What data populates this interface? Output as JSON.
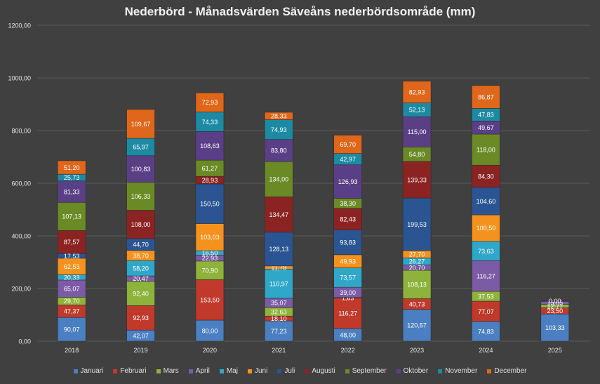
{
  "chart_data": {
    "type": "bar",
    "stacked": true,
    "title": "Nederbörd - Månadsvärden Säveåns nederbördsområde (mm)",
    "categories": [
      "2018",
      "2019",
      "2020",
      "2021",
      "2022",
      "2023",
      "2024",
      "2025"
    ],
    "ylim": [
      0,
      1200
    ],
    "yticks": [
      "0,00",
      "200,00",
      "400,00",
      "600,00",
      "800,00",
      "1000,00",
      "1200,00"
    ],
    "grid": true,
    "legend_position": "bottom",
    "series": [
      {
        "name": "Januari",
        "color": "#4a7fc1",
        "values": [
          90.07,
          42.07,
          80.0,
          77.23,
          48.0,
          120.57,
          74.83,
          103.33
        ],
        "labels": [
          "90,07",
          "42,07",
          "80,00",
          "77,23",
          "48,00",
          "120,57",
          "74,83",
          "103,33"
        ]
      },
      {
        "name": "Februari",
        "color": "#c0392b",
        "values": [
          47.37,
          92.93,
          153.5,
          18.1,
          116.27,
          40.73,
          77.07,
          23.5
        ],
        "labels": [
          "47,37",
          "92,93",
          "153,50",
          "18,10",
          "116,27",
          "40,73",
          "77,07",
          "23,50"
        ]
      },
      {
        "name": "Mars",
        "color": "#8db33a",
        "values": [
          29.7,
          92.4,
          70.9,
          32.63,
          1.63,
          108.13,
          37.53,
          12.77
        ],
        "labels": [
          "29,70",
          "92,40",
          "70,90",
          "32,63",
          "1,63",
          "108,13",
          "37,53",
          "12,77"
        ]
      },
      {
        "name": "April",
        "color": "#7b5aa6",
        "values": [
          65.07,
          20.47,
          22.93,
          35.07,
          39.0,
          20.7,
          116.27,
          13.03
        ],
        "labels": [
          "65,07",
          "20,47",
          "22,93",
          "35,07",
          "39,00",
          "20,70",
          "116,27",
          "13,03"
        ]
      },
      {
        "name": "Maj",
        "color": "#2fa7c9",
        "values": [
          20.33,
          58.2,
          16.5,
          110.97,
          73.57,
          26.27,
          73.63,
          null
        ],
        "labels": [
          "20,33",
          "58,20",
          "16,50",
          "110,97",
          "73,57",
          "26,27",
          "73,63",
          ""
        ]
      },
      {
        "name": "Juni",
        "color": "#f5921e",
        "values": [
          62.53,
          38.7,
          103.03,
          11.78,
          49.93,
          27.7,
          100.5,
          null
        ],
        "labels": [
          "62,53",
          "38,70",
          "103,03",
          "11,78",
          "49,93",
          "27,70",
          "100,50",
          ""
        ]
      },
      {
        "name": "Juli",
        "color": "#2a5592",
        "values": [
          17.53,
          44.7,
          150.5,
          128.13,
          93.83,
          199.53,
          104.6,
          null
        ],
        "labels": [
          "17,53",
          "44,70",
          "150,50",
          "128,13",
          "93,83",
          "199,53",
          "104,60",
          ""
        ]
      },
      {
        "name": "Augusti",
        "color": "#8b2323",
        "values": [
          87.57,
          108.0,
          28.93,
          134.47,
          82.43,
          139.33,
          84.3,
          null
        ],
        "labels": [
          "87,57",
          "108,00",
          "28,93",
          "134,47",
          "82,43",
          "139,33",
          "84,30",
          ""
        ]
      },
      {
        "name": "September",
        "color": "#6a8a26",
        "values": [
          107.13,
          106.33,
          61.27,
          134.0,
          38.3,
          54.8,
          118.0,
          null
        ],
        "labels": [
          "107,13",
          "106,33",
          "61,27",
          "134,00",
          "38,30",
          "54,80",
          "118,00",
          ""
        ]
      },
      {
        "name": "Oktober",
        "color": "#5b3f86",
        "values": [
          81.33,
          100.83,
          108.63,
          83.8,
          126.93,
          115.0,
          49.67,
          0.0
        ],
        "labels": [
          "81,33",
          "100,83",
          "108,63",
          "83,80",
          "126,93",
          "115,00",
          "49,67",
          "0,00"
        ]
      },
      {
        "name": "November",
        "color": "#1d8aa3",
        "values": [
          25.73,
          65.97,
          74.33,
          74.93,
          42.97,
          52.13,
          47.83,
          null
        ],
        "labels": [
          "25,73",
          "65,97",
          "74,33",
          "74,93",
          "42,97",
          "52,13",
          "47,83",
          ""
        ]
      },
      {
        "name": "December",
        "color": "#e0661a",
        "values": [
          51.2,
          109.67,
          72.93,
          28.33,
          69.7,
          82.93,
          86.87,
          null
        ],
        "labels": [
          "51,20",
          "109,67",
          "72,93",
          "28,33",
          "69,70",
          "82,93",
          "86,87",
          ""
        ]
      }
    ]
  }
}
